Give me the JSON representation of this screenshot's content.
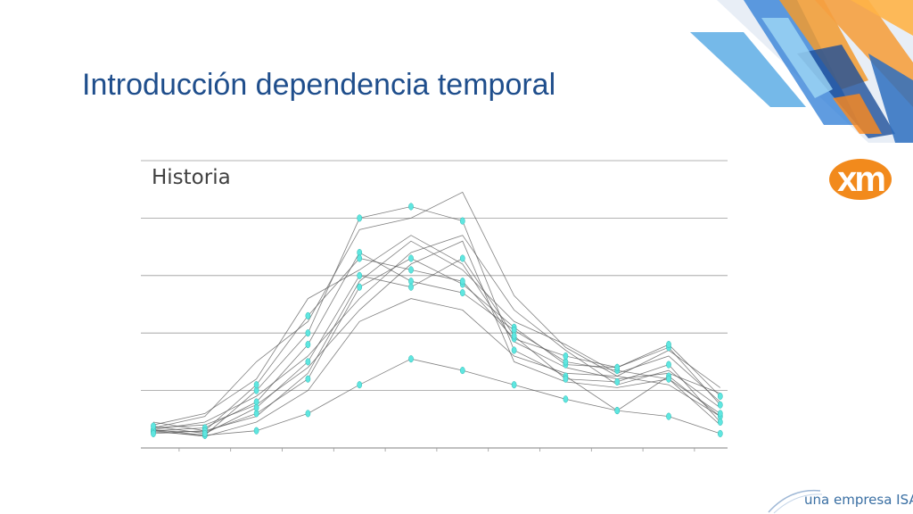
{
  "slide": {
    "title": "Introducción dependencia temporal",
    "logo": "xm",
    "footer": "una empresa ISA"
  },
  "colors": {
    "title": "#1f4e8c",
    "marker": "#5fe6e0",
    "line": "#555555",
    "grid": "#9a9a9a",
    "logo_orange": "#f28a1c",
    "footer": "#3a6fa3"
  },
  "chart_data": {
    "type": "line",
    "title": "Historia",
    "xlabel": "",
    "ylabel": "",
    "x": [
      1,
      2,
      3,
      4,
      5,
      6,
      7,
      8,
      9,
      10,
      11,
      12
    ],
    "ylim": [
      0,
      5
    ],
    "grid": true,
    "legend": "none",
    "series": [
      {
        "values": [
          0.32,
          0.22,
          1.0,
          2.0,
          4.0,
          4.2,
          3.95,
          1.7,
          1.25,
          0.65,
          1.25,
          0.55
        ]
      },
      {
        "values": [
          0.35,
          0.55,
          1.5,
          2.2,
          3.8,
          4.0,
          4.45,
          2.65,
          1.75,
          1.25,
          1.7,
          1.05
        ]
      },
      {
        "values": [
          0.3,
          0.28,
          0.6,
          1.2,
          2.8,
          3.3,
          2.85,
          2.1,
          1.45,
          1.4,
          1.75,
          0.75
        ]
      },
      {
        "values": [
          0.35,
          0.4,
          0.75,
          1.4,
          2.4,
          3.2,
          3.6,
          1.5,
          1.15,
          1.05,
          1.2,
          0.4
        ]
      },
      {
        "values": [
          0.28,
          0.22,
          0.3,
          0.6,
          1.1,
          1.55,
          1.35,
          1.1,
          0.85,
          0.65,
          0.55,
          0.25
        ]
      },
      {
        "values": [
          0.4,
          0.6,
          1.2,
          2.6,
          3.1,
          3.7,
          3.2,
          1.85,
          1.4,
          1.2,
          1.3,
          0.95
        ]
      },
      {
        "values": [
          0.3,
          0.35,
          0.8,
          1.8,
          3.4,
          2.9,
          2.7,
          2.05,
          1.5,
          1.35,
          1.2,
          0.6
        ]
      },
      {
        "values": [
          0.45,
          0.3,
          0.55,
          1.3,
          2.9,
          3.6,
          3.1,
          2.2,
          1.8,
          1.3,
          1.6,
          0.8
        ]
      },
      {
        "values": [
          0.25,
          0.3,
          1.1,
          2.3,
          3.3,
          3.1,
          2.9,
          1.9,
          1.6,
          1.4,
          1.8,
          0.9
        ]
      },
      {
        "values": [
          0.32,
          0.45,
          0.9,
          1.6,
          2.6,
          3.4,
          3.7,
          2.4,
          1.7,
          1.1,
          1.35,
          0.7
        ]
      },
      {
        "values": [
          0.38,
          0.25,
          0.7,
          1.5,
          3.0,
          2.8,
          3.3,
          1.95,
          1.2,
          1.15,
          1.45,
          0.45
        ]
      },
      {
        "values": [
          0.3,
          0.2,
          0.45,
          1.0,
          2.2,
          2.6,
          2.4,
          1.6,
          1.3,
          1.25,
          1.1,
          0.55
        ]
      }
    ]
  }
}
